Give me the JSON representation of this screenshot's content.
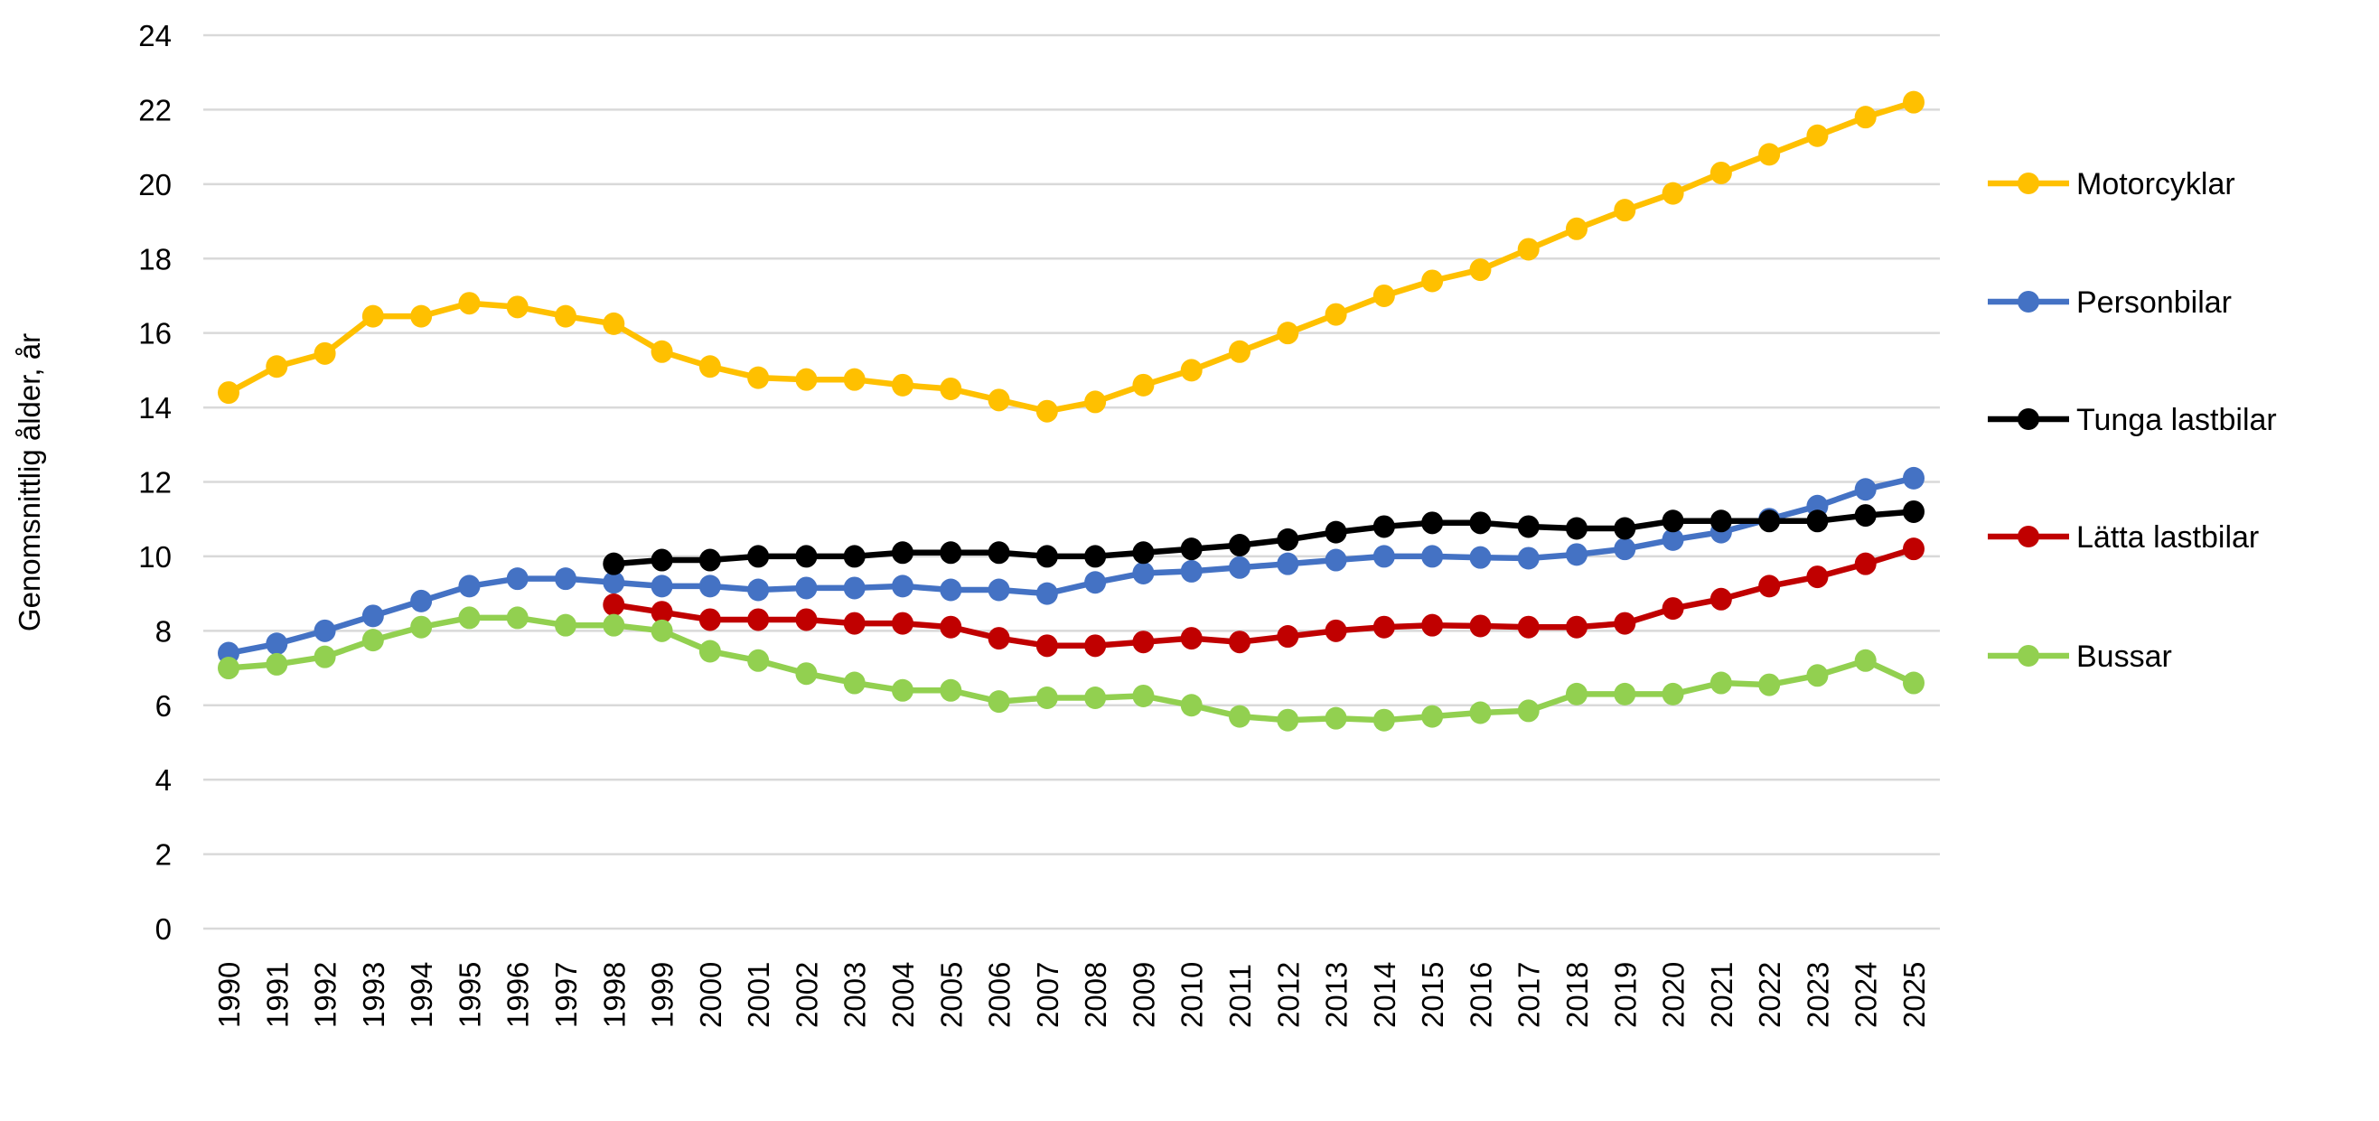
{
  "chart_data": {
    "type": "line",
    "title": "",
    "xlabel": "",
    "ylabel": "Genomsnittlig ålder, år",
    "ylim": [
      0,
      24
    ],
    "yticks": [
      "0",
      "2",
      "4",
      "6",
      "8",
      "10",
      "12",
      "14",
      "16",
      "18",
      "20",
      "22",
      "24"
    ],
    "grid": true,
    "legend_position": "right",
    "categories": [
      "1990",
      "1991",
      "1992",
      "1993",
      "1994",
      "1995",
      "1996",
      "1997",
      "1998",
      "1999",
      "2000",
      "2001",
      "2002",
      "2003",
      "2004",
      "2005",
      "2006",
      "2007",
      "2008",
      "2009",
      "2010",
      "2011",
      "2012",
      "2013",
      "2014",
      "2015",
      "2016",
      "2017",
      "2018",
      "2019",
      "2020",
      "2021",
      "2022",
      "2023",
      "2024",
      "2025"
    ],
    "series": [
      {
        "name": "Motorcyklar",
        "color": "#FFC000",
        "values": [
          14.4,
          15.1,
          15.45,
          16.45,
          16.45,
          16.8,
          16.7,
          16.45,
          16.25,
          15.5,
          15.1,
          14.8,
          14.75,
          14.75,
          14.6,
          14.5,
          14.2,
          13.9,
          14.15,
          14.6,
          15.0,
          15.5,
          16.0,
          16.5,
          17.0,
          17.4,
          17.7,
          18.25,
          18.8,
          19.3,
          19.75,
          20.3,
          20.8,
          21.3,
          21.8,
          22.2
        ]
      },
      {
        "name": "Personbilar",
        "color": "#4472C4",
        "values": [
          7.4,
          7.65,
          8.0,
          8.4,
          8.8,
          9.2,
          9.4,
          9.4,
          9.3,
          9.2,
          9.2,
          9.1,
          9.15,
          9.15,
          9.2,
          9.1,
          9.1,
          9.0,
          9.3,
          9.55,
          9.6,
          9.7,
          9.8,
          9.9,
          10.0,
          10.0,
          9.97,
          9.95,
          10.05,
          10.2,
          10.45,
          10.65,
          11.0,
          11.35,
          11.8,
          12.1
        ]
      },
      {
        "name": "Tunga lastbilar",
        "color": "#000000",
        "values": [
          null,
          null,
          null,
          null,
          null,
          null,
          null,
          null,
          9.8,
          9.9,
          9.9,
          10.0,
          10.0,
          10.0,
          10.1,
          10.1,
          10.1,
          10.0,
          10.0,
          10.1,
          10.2,
          10.3,
          10.45,
          10.65,
          10.8,
          10.9,
          10.9,
          10.8,
          10.75,
          10.75,
          10.95,
          10.95,
          10.95,
          10.95,
          11.1,
          11.2
        ]
      },
      {
        "name": "Lätta lastbilar",
        "color": "#C00000",
        "values": [
          null,
          null,
          null,
          null,
          null,
          null,
          null,
          null,
          8.7,
          8.5,
          8.3,
          8.3,
          8.3,
          8.2,
          8.2,
          8.1,
          7.8,
          7.6,
          7.6,
          7.7,
          7.8,
          7.7,
          7.85,
          8.0,
          8.1,
          8.15,
          8.13,
          8.1,
          8.1,
          8.2,
          8.6,
          8.85,
          9.2,
          9.45,
          9.8,
          10.2
        ]
      },
      {
        "name": "Bussar",
        "color": "#92D050",
        "values": [
          7.0,
          7.1,
          7.3,
          7.75,
          8.1,
          8.35,
          8.35,
          8.15,
          8.15,
          8.0,
          7.45,
          7.2,
          6.85,
          6.6,
          6.4,
          6.4,
          6.1,
          6.2,
          6.2,
          6.25,
          6.0,
          5.7,
          5.6,
          5.65,
          5.6,
          5.7,
          5.8,
          5.85,
          6.3,
          6.3,
          6.3,
          6.6,
          6.55,
          6.8,
          7.2,
          6.6
        ]
      }
    ]
  }
}
